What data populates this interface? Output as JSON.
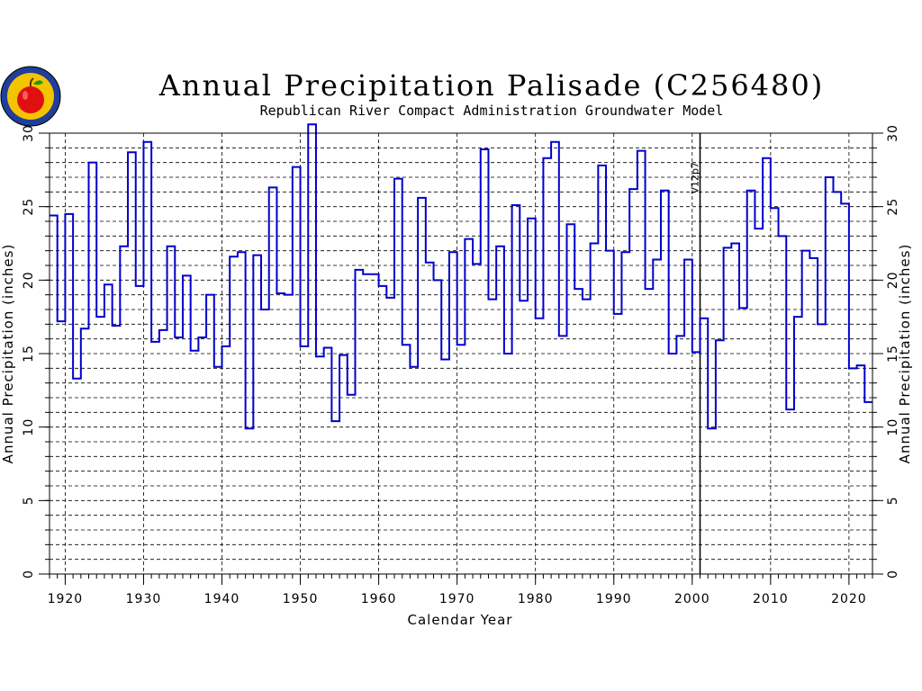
{
  "chart_data": {
    "type": "line",
    "step": true,
    "title": "Annual Precipitation Palisade (C256480)",
    "subtitle": "Republican River Compact Administration Groundwater Model",
    "xlabel": "Calendar Year",
    "ylabel": "Annual Precipitation (inches)",
    "ylabel_right": "Annual Precipitation (inches)",
    "xlim": [
      1918,
      2023
    ],
    "ylim": [
      0,
      30
    ],
    "x_ticks": [
      1920,
      1930,
      1940,
      1950,
      1960,
      1970,
      1980,
      1990,
      2000,
      2010,
      2020
    ],
    "y_ticks": [
      0,
      5,
      10,
      15,
      20,
      25,
      30
    ],
    "grid": true,
    "series_color": "#0000cc",
    "marker": {
      "x": 2001,
      "label": "V12p7"
    },
    "x": [
      1918,
      1919,
      1920,
      1921,
      1922,
      1923,
      1924,
      1925,
      1926,
      1927,
      1928,
      1929,
      1930,
      1931,
      1932,
      1933,
      1934,
      1935,
      1936,
      1937,
      1938,
      1939,
      1940,
      1941,
      1942,
      1943,
      1944,
      1945,
      1946,
      1947,
      1948,
      1949,
      1950,
      1951,
      1952,
      1953,
      1954,
      1955,
      1956,
      1957,
      1958,
      1959,
      1960,
      1961,
      1962,
      1963,
      1964,
      1965,
      1966,
      1967,
      1968,
      1969,
      1970,
      1971,
      1972,
      1973,
      1974,
      1975,
      1976,
      1977,
      1978,
      1979,
      1980,
      1981,
      1982,
      1983,
      1984,
      1985,
      1986,
      1987,
      1988,
      1989,
      1990,
      1991,
      1992,
      1993,
      1994,
      1995,
      1996,
      1997,
      1998,
      1999,
      2000,
      2001,
      2002,
      2003,
      2004,
      2005,
      2006,
      2007,
      2008,
      2009,
      2010,
      2011,
      2012,
      2013,
      2014,
      2015,
      2016,
      2017,
      2018,
      2019,
      2020,
      2021,
      2022
    ],
    "values": [
      24.4,
      17.2,
      24.5,
      13.3,
      16.7,
      28.0,
      17.5,
      19.7,
      16.9,
      22.3,
      28.7,
      19.6,
      29.4,
      15.8,
      16.6,
      22.3,
      16.1,
      20.3,
      15.2,
      16.1,
      19.0,
      14.1,
      15.5,
      21.6,
      21.9,
      9.9,
      21.7,
      18.0,
      26.3,
      19.1,
      19.0,
      27.7,
      15.5,
      30.6,
      14.8,
      15.4,
      10.4,
      14.9,
      12.2,
      20.7,
      20.4,
      20.4,
      19.6,
      18.8,
      26.9,
      15.6,
      14.1,
      25.6,
      21.2,
      20.0,
      14.6,
      21.9,
      15.6,
      22.8,
      21.1,
      28.9,
      18.7,
      22.3,
      15.0,
      25.1,
      18.6,
      24.2,
      17.4,
      28.3,
      29.4,
      16.2,
      23.8,
      19.4,
      18.7,
      22.5,
      27.8,
      22.0,
      17.7,
      21.9,
      26.2,
      28.8,
      19.4,
      21.4,
      26.1,
      15.0,
      16.2,
      21.4,
      15.1,
      17.4,
      9.9,
      15.9,
      22.2,
      22.5,
      18.1,
      26.1,
      23.5,
      28.3,
      24.9,
      23.0,
      11.2,
      17.5,
      22.0,
      21.5,
      17.0,
      27.0,
      26.0,
      25.2,
      14.0,
      14.2,
      11.7
    ]
  },
  "icon": {
    "name": "apple-seal-logo"
  }
}
